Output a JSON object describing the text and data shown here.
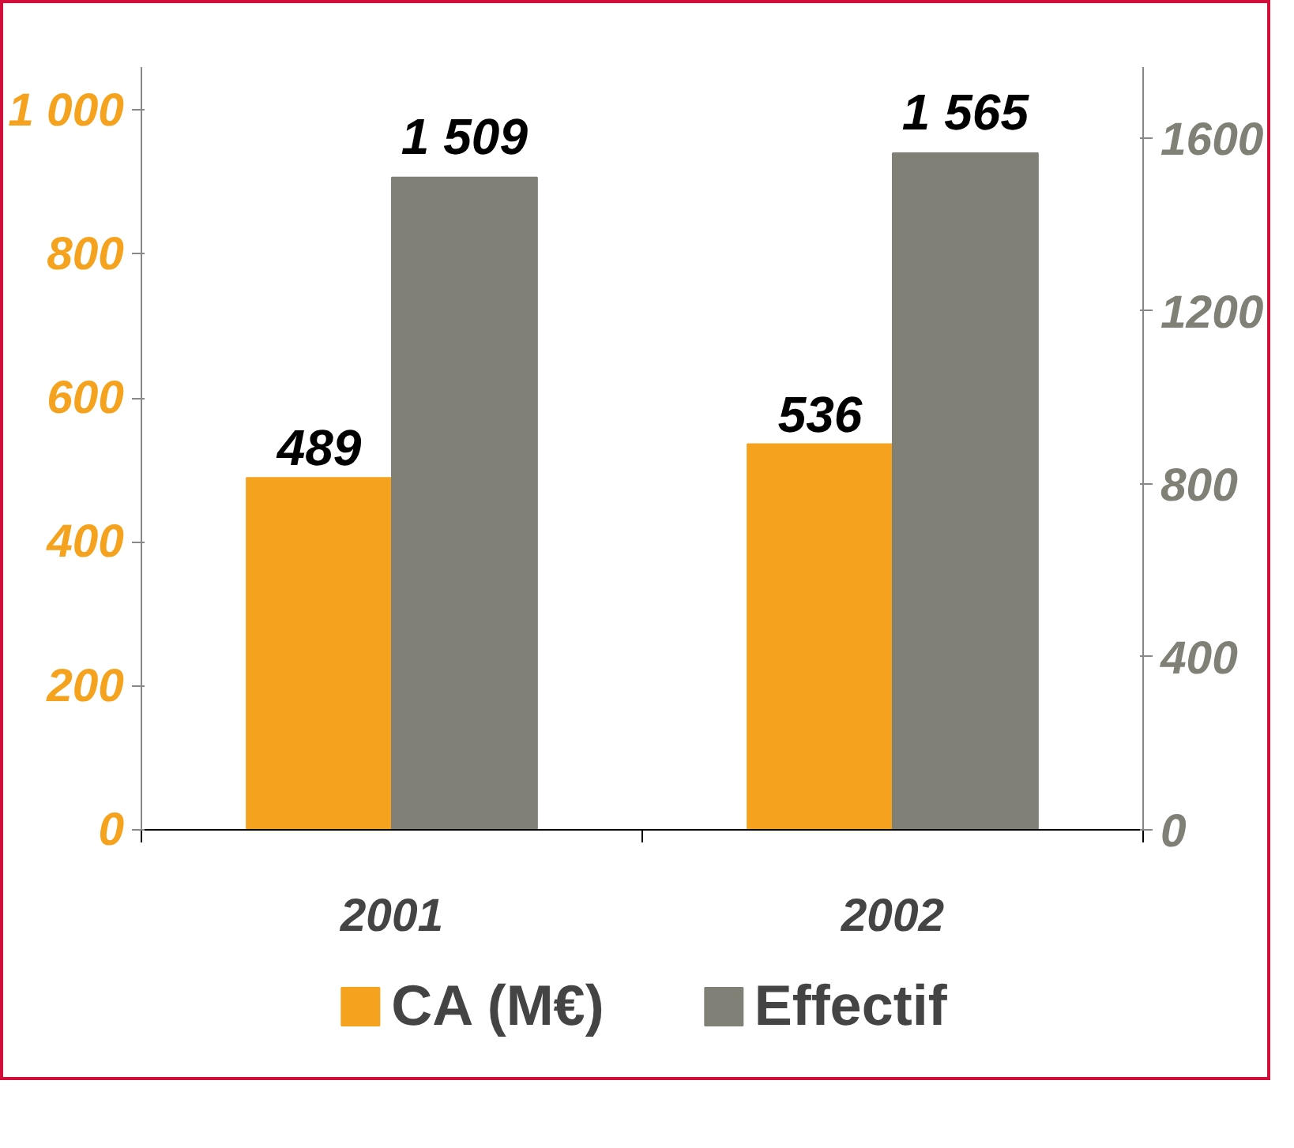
{
  "chart_data": {
    "type": "bar",
    "categories": [
      "2001",
      "2002"
    ],
    "series": [
      {
        "name": "CA (M€)",
        "color": "#f5a31f",
        "values": [
          489,
          536
        ],
        "value_labels": [
          "489",
          "536"
        ]
      },
      {
        "name": "Effectif",
        "color": "#808077",
        "values": [
          1509,
          1565
        ],
        "value_labels": [
          "1 509",
          "1 565"
        ],
        "axis": "y2"
      }
    ],
    "ylim": [
      0,
      1060
    ],
    "yticks": [
      0,
      200,
      400,
      600,
      800,
      {
        "value": 1000,
        "label": "1 000"
      }
    ],
    "y2lim": [
      0,
      1764
    ],
    "y2ticks": [
      0,
      400,
      800,
      1200,
      1600
    ],
    "grid": false,
    "legend": "bottom"
  }
}
